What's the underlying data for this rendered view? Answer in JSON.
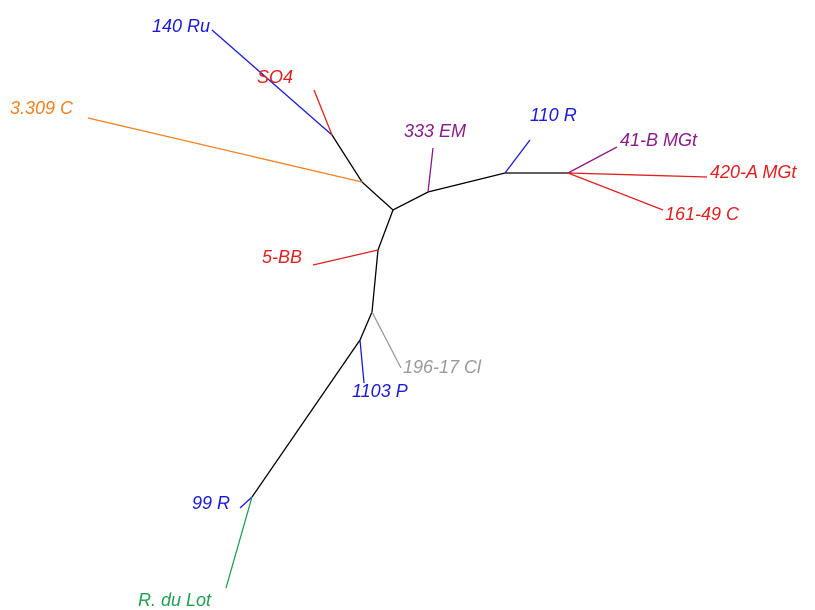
{
  "nodes": [
    {
      "label": "140 Ru"
    },
    {
      "label": "SO4"
    },
    {
      "label": "3.309 C"
    },
    {
      "label": "333 EM"
    },
    {
      "label": "110 R"
    },
    {
      "label": "41-B MGt"
    },
    {
      "label": "420-A MGt"
    },
    {
      "label": "161-49 C"
    },
    {
      "label": "5-BB"
    },
    {
      "label": "196-17 Cl"
    },
    {
      "label": "1103 P"
    },
    {
      "label": "99 R"
    },
    {
      "label": "R. du Lot"
    }
  ]
}
